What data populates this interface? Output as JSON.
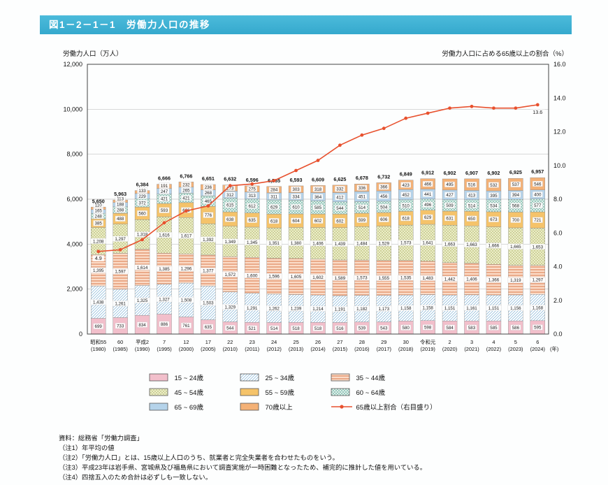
{
  "header": {
    "title": "図1－2－1－1　労働力人口の推移",
    "bar_color": "#3fb3d6"
  },
  "chart_data": {
    "type": "stacked-bar-line-combo",
    "categories": [
      {
        "era": "昭和55",
        "year": "(1980)"
      },
      {
        "era": "60",
        "year": "(1985)"
      },
      {
        "era": "平成2",
        "year": "(1990)"
      },
      {
        "era": "7",
        "year": "(1995)"
      },
      {
        "era": "12",
        "year": "(2000)"
      },
      {
        "era": "17",
        "year": "(2005)"
      },
      {
        "era": "22",
        "year": "(2010)"
      },
      {
        "era": "23",
        "year": "(2011)"
      },
      {
        "era": "24",
        "year": "(2012)"
      },
      {
        "era": "25",
        "year": "(2013)"
      },
      {
        "era": "26",
        "year": "(2014)"
      },
      {
        "era": "27",
        "year": "(2015)"
      },
      {
        "era": "28",
        "year": "(2016)"
      },
      {
        "era": "29",
        "year": "(2017)"
      },
      {
        "era": "30",
        "year": "(2018)"
      },
      {
        "era": "令和元",
        "year": "(2019)"
      },
      {
        "era": "2",
        "year": "(2020)"
      },
      {
        "era": "3",
        "year": "(2021)"
      },
      {
        "era": "4",
        "year": "(2022)"
      },
      {
        "era": "5",
        "year": "(2023)"
      },
      {
        "era": "6",
        "year": "(2024)"
      }
    ],
    "series": [
      {
        "key": "g15",
        "name": "15 ~ 24歳",
        "fill": "#f2bfcb",
        "fill2": "#f2bfcb",
        "pattern": "solid",
        "values": [
          699,
          733,
          834,
          886,
          761,
          635,
          544,
          521,
          514,
          518,
          518,
          516,
          539,
          543,
          580,
          598,
          584,
          583,
          585,
          586,
          595
        ]
      },
      {
        "key": "g25",
        "name": "25 ~ 34歳",
        "fill": "#ffffff",
        "fill2": "#7fb2d6",
        "pattern": "diag",
        "values": [
          1438,
          1261,
          1325,
          1327,
          1508,
          1503,
          1329,
          1291,
          1262,
          1239,
          1214,
          1191,
          1182,
          1173,
          1158,
          1158,
          1151,
          1161,
          1151,
          1156,
          1168
        ]
      },
      {
        "key": "g35",
        "name": "35 ~ 44歳",
        "fill": "#fbdcc8",
        "fill2": "#e59a74",
        "pattern": "horiz",
        "values": [
          1395,
          1597,
          1614,
          1385,
          1296,
          1377,
          1572,
          1600,
          1596,
          1605,
          1602,
          1589,
          1573,
          1555,
          1535,
          1483,
          1442,
          1406,
          1366,
          1319,
          1297
        ]
      },
      {
        "key": "g45",
        "name": "45 ~ 54歳",
        "fill": "#eceec9",
        "fill2": "#a0a552",
        "pattern": "dots",
        "values": [
          1208,
          1297,
          1318,
          1616,
          1617,
          1392,
          1349,
          1345,
          1351,
          1380,
          1406,
          1439,
          1484,
          1529,
          1573,
          1641,
          1663,
          1663,
          1666,
          1665,
          1653
        ]
      },
      {
        "key": "g55",
        "name": "55 ~ 59歳",
        "fill": "#f5c36a",
        "fill2": "#f5c36a",
        "pattern": "solid",
        "values": [
          385,
          488,
          560,
          593,
          666,
          776,
          638,
          635,
          618,
          604,
          602,
          602,
          599,
          606,
          618,
          629,
          631,
          650,
          673,
          700,
          721
        ]
      },
      {
        "key": "g60",
        "name": "60 ~ 64歳",
        "fill": "#eaf4ef",
        "fill2": "#68b1a1",
        "pattern": "cross",
        "values": [
          248,
          288,
          372,
          421,
          421,
          465,
          615,
          612,
          629,
          610,
          585,
          544,
          514,
          504,
          510,
          496,
          509,
          514,
          534,
          568,
          577
        ]
      },
      {
        "key": "g65",
        "name": "65 ~ 69歳",
        "fill": "#b5d3ea",
        "fill2": "#b5d3ea",
        "pattern": "solid",
        "values": [
          165,
          188,
          229,
          247,
          265,
          268,
          312,
          313,
          311,
          334,
          364,
          412,
          451,
          456,
          452,
          441,
          427,
          413,
          395,
          394,
          400
        ]
      },
      {
        "key": "g70",
        "name": "70歳以上",
        "fill": "#f4b176",
        "fill2": "#f4b176",
        "pattern": "solid",
        "values": [
          110,
          113,
          133,
          191,
          232,
          236,
          273,
          275,
          284,
          303,
          318,
          332,
          336,
          366,
          423,
          466,
          495,
          516,
          532,
          537,
          546
        ]
      }
    ],
    "totals": [
      5650,
      5963,
      6384,
      6666,
      6766,
      6651,
      6632,
      6596,
      6565,
      6593,
      6609,
      6625,
      6678,
      6732,
      6849,
      6912,
      6902,
      6907,
      6902,
      6925,
      6957
    ],
    "line": {
      "name": "65歳以上割合（右目盛り）",
      "color": "#e8512e",
      "values": [
        4.9,
        5.0,
        5.6,
        6.6,
        7.3,
        7.6,
        8.8,
        8.9,
        9.1,
        9.7,
        10.3,
        11.2,
        11.8,
        12.2,
        12.8,
        13.1,
        13.4,
        13.5,
        13.4,
        13.4,
        13.6
      ],
      "first_label": "4.9",
      "last_label": "13.6"
    },
    "y_left": {
      "title": "労働力人口（万人）",
      "min": 0,
      "max": 12000,
      "step": 2000,
      "ticks": [
        "0",
        "2,000",
        "4,000",
        "6,000",
        "8,000",
        "10,000",
        "12,000"
      ]
    },
    "y_right": {
      "title": "労働力人口に占める65歳以上の割合（%）",
      "min": 0,
      "max": 16,
      "step": 2,
      "ticks": [
        "0.0",
        "2.0",
        "4.0",
        "6.0",
        "8.0",
        "10.0",
        "12.0",
        "14.0",
        "16.0"
      ]
    },
    "x_axis_unit": "(年)"
  },
  "notes": [
    "資料：総務省「労働力調査」",
    "（注1）年平均の値",
    "（注2）「労働力人口」とは、15歳以上人口のうち、就業者と完全失業者を合わせたものをいう。",
    "（注3）平成23年は岩手県、宮城県及び福島県において調査実施が一時困難となったため、補完的に推計した値を用いている。",
    "（注4）四捨五入のため合計は必ずしも一致しない。"
  ]
}
